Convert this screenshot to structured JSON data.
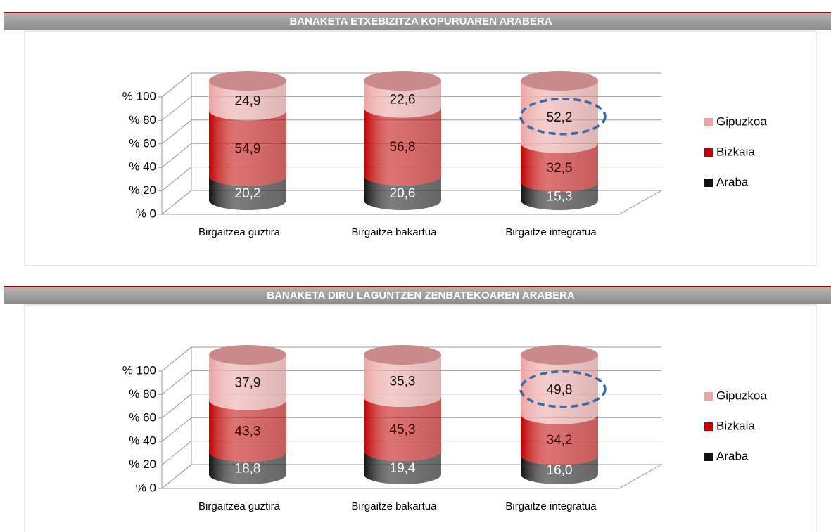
{
  "chart_data": [
    {
      "type": "bar",
      "stacked": true,
      "title": "BANAKETA ETXEBIZITZA KOPURUAREN ARABERA",
      "categories": [
        "Birgaitzea guztira",
        "Birgaitze bakartua",
        "Birgaitze integratua"
      ],
      "series": [
        {
          "name": "Araba",
          "color": "#111111",
          "label_color": "#ffffff",
          "values": [
            20.2,
            20.6,
            15.3
          ],
          "value_labels": [
            "20,2",
            "20,6",
            "15,3"
          ]
        },
        {
          "name": "Bizkaia",
          "color": "#c00000",
          "label_color": "#3a0000",
          "values": [
            54.9,
            56.8,
            32.5
          ],
          "value_labels": [
            "54,9",
            "56,8",
            "32,5"
          ]
        },
        {
          "name": "Gipuzkoa",
          "color": "#eba3a3",
          "label_color": "#111111",
          "values": [
            24.9,
            22.6,
            52.2
          ],
          "value_labels": [
            "24,9",
            "22,6",
            "52,2"
          ]
        }
      ],
      "ylim": [
        0,
        100
      ],
      "yticks": [
        {
          "value": 0,
          "label": "% 0"
        },
        {
          "value": 20,
          "label": "% 20"
        },
        {
          "value": 40,
          "label": "% 40"
        },
        {
          "value": 60,
          "label": "% 60"
        },
        {
          "value": 80,
          "label": "% 80"
        },
        {
          "value": 100,
          "label": "% 100"
        }
      ],
      "grid": true,
      "legend": "right"
    },
    {
      "type": "bar",
      "stacked": true,
      "title": "BANAKETA DIRU LAGUNTZEN ZENBATEKOAREN ARABERA",
      "categories": [
        "Birgaitzea guztira",
        "Birgaitze bakartua",
        "Birgaitze integratua"
      ],
      "series": [
        {
          "name": "Araba",
          "color": "#111111",
          "label_color": "#ffffff",
          "values": [
            18.8,
            19.4,
            16.0
          ],
          "value_labels": [
            "18,8",
            "19,4",
            "16,0"
          ]
        },
        {
          "name": "Bizkaia",
          "color": "#c00000",
          "label_color": "#3a0000",
          "values": [
            43.3,
            45.3,
            34.2
          ],
          "value_labels": [
            "43,3",
            "45,3",
            "34,2"
          ]
        },
        {
          "name": "Gipuzkoa",
          "color": "#eba3a3",
          "label_color": "#111111",
          "values": [
            37.9,
            35.3,
            49.8
          ],
          "value_labels": [
            "37,9",
            "35,3",
            "49,8"
          ]
        }
      ],
      "ylim": [
        0,
        100
      ],
      "yticks": [
        {
          "value": 0,
          "label": "% 0"
        },
        {
          "value": 20,
          "label": "% 20"
        },
        {
          "value": 40,
          "label": "% 40"
        },
        {
          "value": 60,
          "label": "% 60"
        },
        {
          "value": 80,
          "label": "% 80"
        },
        {
          "value": 100,
          "label": "% 100"
        }
      ],
      "grid": true,
      "legend": "right"
    }
  ]
}
